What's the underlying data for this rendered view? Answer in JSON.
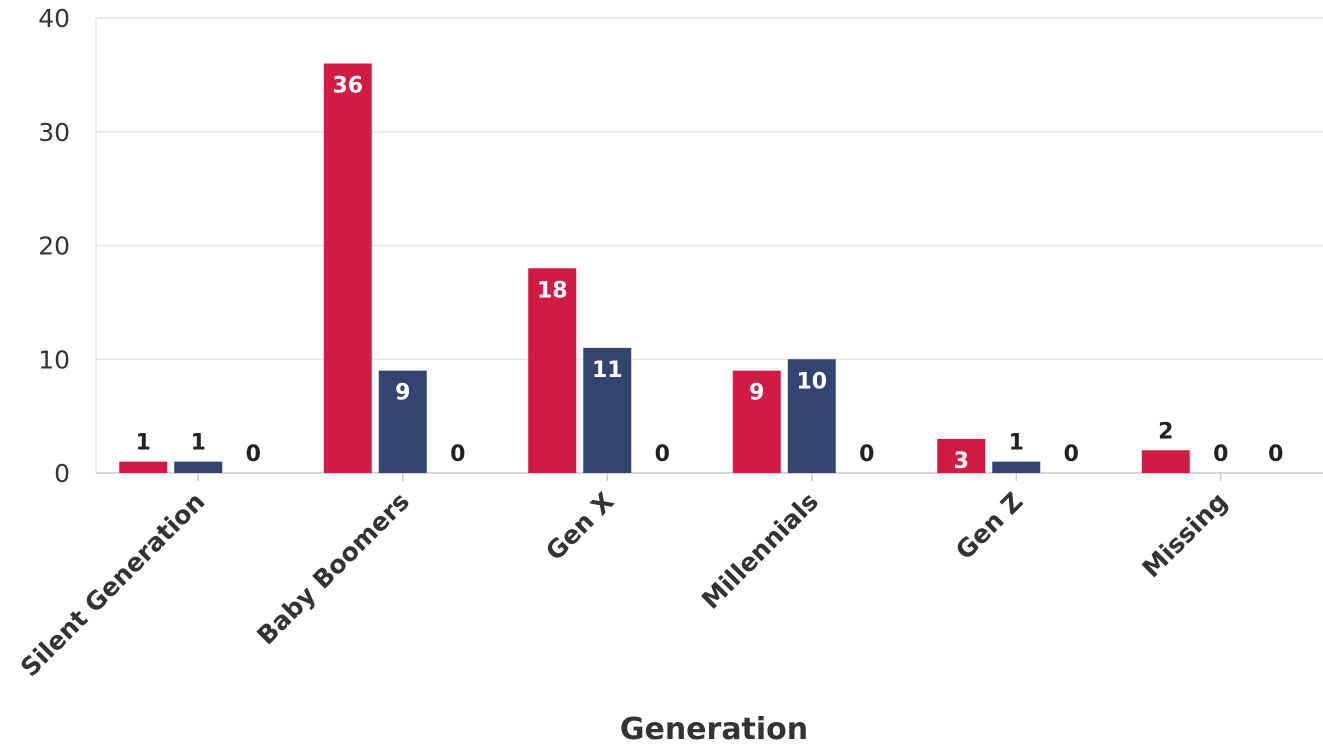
{
  "chart_data": {
    "type": "bar",
    "xlabel": "Generation",
    "ylabel": "",
    "ylim": [
      0,
      40
    ],
    "yticks": [
      0,
      10,
      20,
      30,
      40
    ],
    "grid": true,
    "legend": "none",
    "categories": [
      "Silent Generation",
      "Baby Boomers",
      "Gen X",
      "Millennials",
      "Gen Z",
      "Missing"
    ],
    "series": [
      {
        "color": "#d01c45",
        "values": [
          1,
          36,
          18,
          9,
          3,
          2
        ]
      },
      {
        "color": "#344470",
        "values": [
          1,
          9,
          11,
          10,
          1,
          0
        ]
      },
      {
        "color": "#8a8a8a",
        "values": [
          0,
          0,
          0,
          0,
          0,
          0
        ]
      }
    ]
  }
}
